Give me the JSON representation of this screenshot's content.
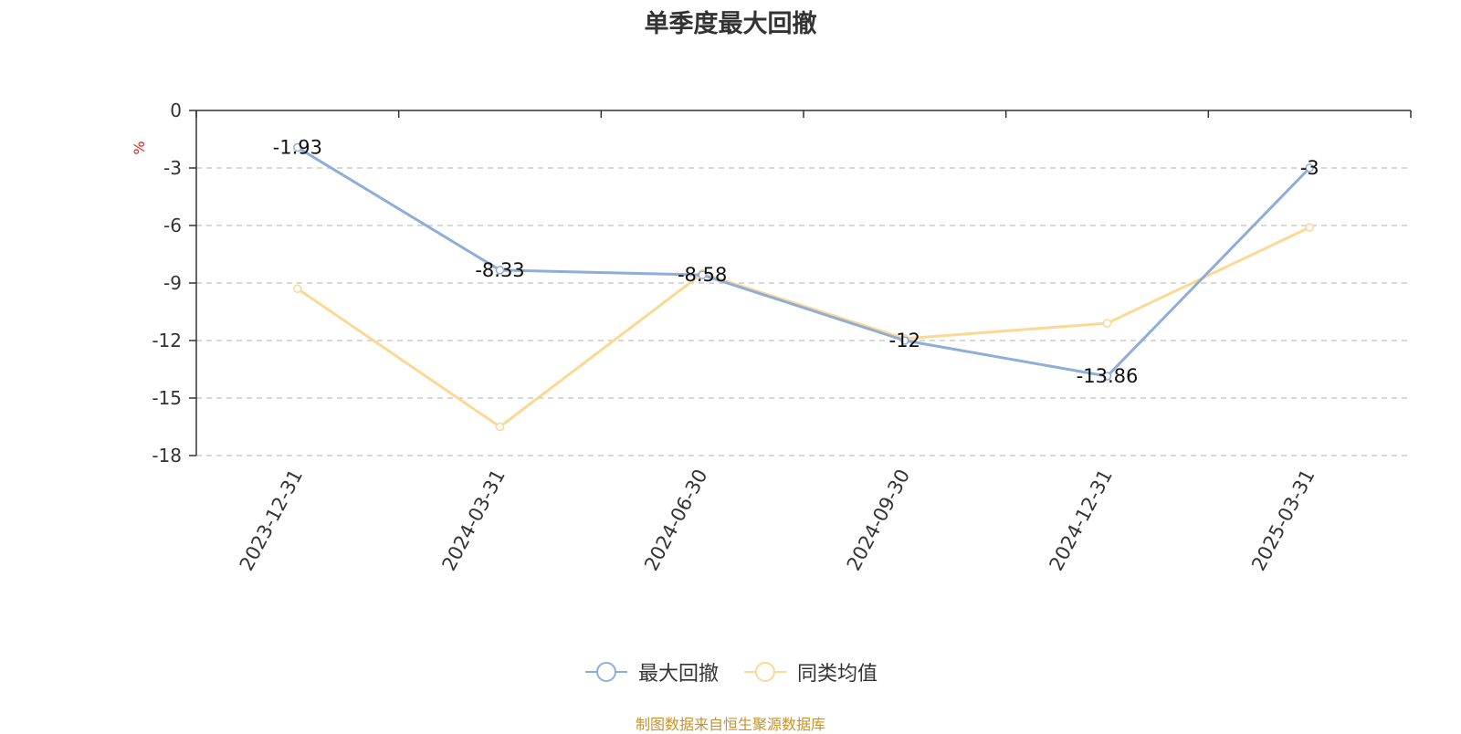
{
  "chart_data": {
    "type": "line",
    "title": "单季度最大回撤",
    "ylabel": "%",
    "categories": [
      "2023-12-31",
      "2024-03-31",
      "2024-06-30",
      "2024-09-30",
      "2024-12-31",
      "2025-03-31"
    ],
    "series": [
      {
        "name": "最大回撤",
        "color": "#8eadd9",
        "values": [
          -1.93,
          -8.33,
          -8.58,
          -12,
          -13.86,
          -3
        ],
        "show_labels": true
      },
      {
        "name": "同类均值",
        "color": "#fbd894",
        "values": [
          -9.3,
          -16.5,
          -8.5,
          -11.9,
          -11.1,
          -6.1
        ],
        "show_labels": false
      }
    ],
    "ylim": [
      -18,
      0
    ],
    "yticks": [
      0,
      -3,
      -6,
      -9,
      -12,
      -15,
      -18
    ],
    "grid": true,
    "legend_position": "bottom-center"
  },
  "source_note": "制图数据来自恒生聚源数据库"
}
